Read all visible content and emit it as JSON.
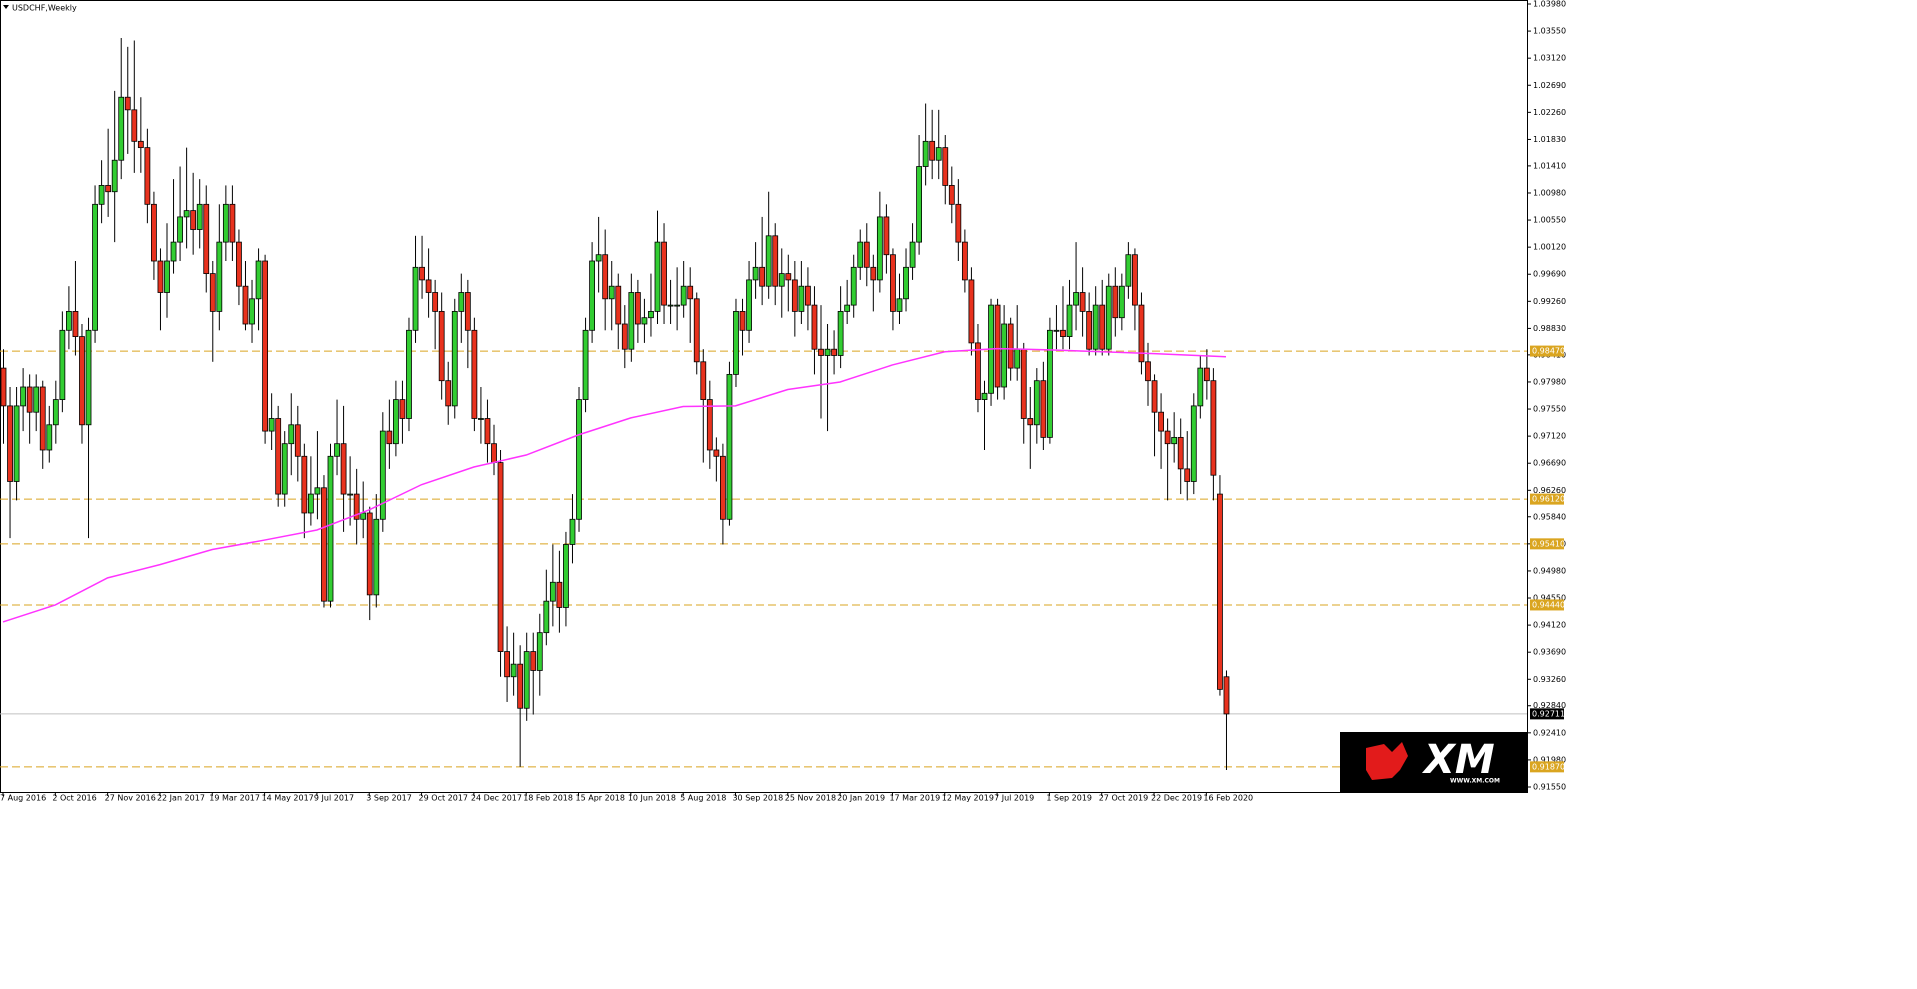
{
  "chart_data": {
    "type": "candlestick",
    "title": "USDCHF,Weekly",
    "up_color": "#32cd32",
    "down_color": "#e8321e",
    "candles": [
      [
        0.982,
        0.985,
        0.97,
        0.976
      ],
      [
        0.976,
        0.979,
        0.955,
        0.964
      ],
      [
        0.964,
        0.979,
        0.961,
        0.976
      ],
      [
        0.976,
        0.982,
        0.972,
        0.979
      ],
      [
        0.979,
        0.981,
        0.97,
        0.975
      ],
      [
        0.975,
        0.981,
        0.972,
        0.979
      ],
      [
        0.979,
        0.98,
        0.966,
        0.969
      ],
      [
        0.969,
        0.976,
        0.967,
        0.973
      ],
      [
        0.973,
        0.98,
        0.97,
        0.977
      ],
      [
        0.977,
        0.991,
        0.975,
        0.988
      ],
      [
        0.988,
        0.995,
        0.985,
        0.991
      ],
      [
        0.991,
        0.999,
        0.984,
        0.987
      ],
      [
        0.987,
        0.989,
        0.97,
        0.973
      ],
      [
        0.973,
        0.99,
        0.955,
        0.988
      ],
      [
        0.988,
        1.011,
        0.986,
        1.008
      ],
      [
        1.008,
        1.015,
        1.005,
        1.011
      ],
      [
        1.011,
        1.02,
        1.006,
        1.01
      ],
      [
        1.01,
        1.026,
        1.002,
        1.015
      ],
      [
        1.015,
        1.0344,
        1.012,
        1.025
      ],
      [
        1.025,
        1.033,
        1.016,
        1.023
      ],
      [
        1.023,
        1.034,
        1.013,
        1.018
      ],
      [
        1.018,
        1.025,
        1.013,
        1.017
      ],
      [
        1.017,
        1.02,
        1.005,
        1.008
      ],
      [
        1.008,
        1.01,
        0.996,
        0.999
      ],
      [
        0.999,
        1.001,
        0.988,
        0.994
      ],
      [
        0.994,
        1.005,
        0.99,
        0.999
      ],
      [
        0.999,
        1.012,
        0.997,
        1.002
      ],
      [
        1.002,
        1.014,
        0.999,
        1.006
      ],
      [
        1.006,
        1.017,
        1.001,
        1.007
      ],
      [
        1.007,
        1.013,
        1.0,
        1.004
      ],
      [
        1.004,
        1.012,
        1.001,
        1.008
      ],
      [
        1.008,
        1.011,
        0.994,
        0.997
      ],
      [
        0.997,
        0.999,
        0.983,
        0.991
      ],
      [
        0.991,
        1.008,
        0.988,
        1.002
      ],
      [
        1.002,
        1.011,
        0.999,
        1.008
      ],
      [
        1.008,
        1.011,
        0.999,
        1.002
      ],
      [
        1.002,
        1.004,
        0.992,
        0.995
      ],
      [
        0.995,
        0.999,
        0.988,
        0.989
      ],
      [
        0.989,
        0.996,
        0.986,
        0.993
      ],
      [
        0.993,
        1.001,
        0.988,
        0.999
      ],
      [
        0.999,
        1.0,
        0.97,
        0.972
      ],
      [
        0.972,
        0.978,
        0.969,
        0.974
      ],
      [
        0.974,
        0.976,
        0.96,
        0.962
      ],
      [
        0.962,
        0.972,
        0.96,
        0.97
      ],
      [
        0.97,
        0.978,
        0.965,
        0.973
      ],
      [
        0.973,
        0.976,
        0.964,
        0.968
      ],
      [
        0.968,
        0.97,
        0.955,
        0.959
      ],
      [
        0.959,
        0.968,
        0.957,
        0.962
      ],
      [
        0.962,
        0.972,
        0.958,
        0.963
      ],
      [
        0.963,
        0.965,
        0.944,
        0.945
      ],
      [
        0.945,
        0.97,
        0.944,
        0.968
      ],
      [
        0.968,
        0.977,
        0.965,
        0.97
      ],
      [
        0.97,
        0.976,
        0.956,
        0.962
      ],
      [
        0.962,
        0.968,
        0.957,
        0.962
      ],
      [
        0.962,
        0.966,
        0.954,
        0.958
      ],
      [
        0.958,
        0.964,
        0.955,
        0.959
      ],
      [
        0.959,
        0.96,
        0.942,
        0.946
      ],
      [
        0.946,
        0.962,
        0.944,
        0.958
      ],
      [
        0.958,
        0.975,
        0.956,
        0.972
      ],
      [
        0.972,
        0.977,
        0.966,
        0.97
      ],
      [
        0.97,
        0.98,
        0.968,
        0.977
      ],
      [
        0.977,
        0.98,
        0.97,
        0.974
      ],
      [
        0.974,
        0.99,
        0.972,
        0.988
      ],
      [
        0.988,
        1.003,
        0.986,
        0.998
      ],
      [
        0.998,
        1.003,
        0.993,
        0.996
      ],
      [
        0.996,
        1.001,
        0.99,
        0.994
      ],
      [
        0.994,
        0.996,
        0.985,
        0.991
      ],
      [
        0.991,
        0.994,
        0.977,
        0.98
      ],
      [
        0.98,
        0.983,
        0.973,
        0.976
      ],
      [
        0.976,
        0.993,
        0.974,
        0.991
      ],
      [
        0.991,
        0.997,
        0.986,
        0.994
      ],
      [
        0.994,
        0.996,
        0.982,
        0.988
      ],
      [
        0.988,
        0.99,
        0.972,
        0.974
      ],
      [
        0.974,
        0.979,
        0.97,
        0.974
      ],
      [
        0.974,
        0.977,
        0.967,
        0.97
      ],
      [
        0.97,
        0.973,
        0.965,
        0.967
      ],
      [
        0.967,
        0.969,
        0.933,
        0.937
      ],
      [
        0.937,
        0.941,
        0.929,
        0.933
      ],
      [
        0.933,
        0.94,
        0.93,
        0.935
      ],
      [
        0.935,
        0.938,
        0.9187,
        0.928
      ],
      [
        0.928,
        0.94,
        0.926,
        0.937
      ],
      [
        0.937,
        0.94,
        0.927,
        0.934
      ],
      [
        0.934,
        0.943,
        0.93,
        0.94
      ],
      [
        0.94,
        0.95,
        0.938,
        0.945
      ],
      [
        0.945,
        0.954,
        0.941,
        0.948
      ],
      [
        0.948,
        0.953,
        0.94,
        0.944
      ],
      [
        0.944,
        0.956,
        0.941,
        0.954
      ],
      [
        0.954,
        0.962,
        0.951,
        0.958
      ],
      [
        0.958,
        0.979,
        0.956,
        0.977
      ],
      [
        0.977,
        0.99,
        0.975,
        0.988
      ],
      [
        0.988,
        1.002,
        0.986,
        0.999
      ],
      [
        0.999,
        1.006,
        0.994,
        1.0
      ],
      [
        1.0,
        1.004,
        0.988,
        0.993
      ],
      [
        0.993,
        0.999,
        0.988,
        0.995
      ],
      [
        0.995,
        0.997,
        0.985,
        0.989
      ],
      [
        0.989,
        0.992,
        0.982,
        0.985
      ],
      [
        0.985,
        0.997,
        0.983,
        0.994
      ],
      [
        0.994,
        0.996,
        0.986,
        0.989
      ],
      [
        0.989,
        0.993,
        0.986,
        0.99
      ],
      [
        0.99,
        0.997,
        0.987,
        0.991
      ],
      [
        0.991,
        1.007,
        0.989,
        1.002
      ],
      [
        1.002,
        1.005,
        0.989,
        0.992
      ],
      [
        0.992,
        0.996,
        0.989,
        0.992
      ],
      [
        0.992,
        0.998,
        0.988,
        0.992
      ],
      [
        0.992,
        0.999,
        0.99,
        0.995
      ],
      [
        0.995,
        0.998,
        0.986,
        0.993
      ],
      [
        0.993,
        0.994,
        0.981,
        0.983
      ],
      [
        0.983,
        0.985,
        0.967,
        0.977
      ],
      [
        0.977,
        0.98,
        0.966,
        0.969
      ],
      [
        0.969,
        0.971,
        0.964,
        0.968
      ],
      [
        0.968,
        0.97,
        0.954,
        0.958
      ],
      [
        0.958,
        0.983,
        0.957,
        0.981
      ],
      [
        0.981,
        0.993,
        0.979,
        0.991
      ],
      [
        0.991,
        0.993,
        0.984,
        0.988
      ],
      [
        0.988,
        0.999,
        0.986,
        0.996
      ],
      [
        0.996,
        1.002,
        0.993,
        0.998
      ],
      [
        0.998,
        1.006,
        0.992,
        0.995
      ],
      [
        0.995,
        1.01,
        0.993,
        1.003
      ],
      [
        1.003,
        1.005,
        0.992,
        0.995
      ],
      [
        0.995,
        1.001,
        0.99,
        0.997
      ],
      [
        0.997,
        1.0,
        0.991,
        0.996
      ],
      [
        0.996,
        0.999,
        0.987,
        0.991
      ],
      [
        0.991,
        0.999,
        0.989,
        0.995
      ],
      [
        0.995,
        0.998,
        0.988,
        0.992
      ],
      [
        0.992,
        0.995,
        0.981,
        0.985
      ],
      [
        0.985,
        0.992,
        0.974,
        0.984
      ],
      [
        0.984,
        0.989,
        0.972,
        0.985
      ],
      [
        0.985,
        0.988,
        0.981,
        0.984
      ],
      [
        0.984,
        0.995,
        0.982,
        0.991
      ],
      [
        0.991,
        0.996,
        0.989,
        0.992
      ],
      [
        0.992,
        1.0,
        0.99,
        0.998
      ],
      [
        0.998,
        1.004,
        0.996,
        1.002
      ],
      [
        1.002,
        1.005,
        0.995,
        0.998
      ],
      [
        0.998,
        1.0,
        0.991,
        0.996
      ],
      [
        0.996,
        1.01,
        0.994,
        1.006
      ],
      [
        1.006,
        1.008,
        0.997,
        1.0
      ],
      [
        1.0,
        1.001,
        0.988,
        0.991
      ],
      [
        0.991,
        0.997,
        0.989,
        0.993
      ],
      [
        0.993,
        1.001,
        0.991,
        0.998
      ],
      [
        0.998,
        1.005,
        0.996,
        1.002
      ],
      [
        1.002,
        1.019,
        1.0,
        1.014
      ],
      [
        1.014,
        1.024,
        1.011,
        1.018
      ],
      [
        1.018,
        1.023,
        1.012,
        1.015
      ],
      [
        1.015,
        1.023,
        1.012,
        1.017
      ],
      [
        1.017,
        1.019,
        1.008,
        1.011
      ],
      [
        1.011,
        1.014,
        1.005,
        1.008
      ],
      [
        1.008,
        1.012,
        0.999,
        1.002
      ],
      [
        1.002,
        1.004,
        0.994,
        0.996
      ],
      [
        0.996,
        0.998,
        0.984,
        0.986
      ],
      [
        0.986,
        0.989,
        0.975,
        0.977
      ],
      [
        0.977,
        0.98,
        0.969,
        0.978
      ],
      [
        0.978,
        0.993,
        0.976,
        0.992
      ],
      [
        0.992,
        0.993,
        0.977,
        0.979
      ],
      [
        0.979,
        0.992,
        0.977,
        0.989
      ],
      [
        0.989,
        0.99,
        0.98,
        0.982
      ],
      [
        0.982,
        0.992,
        0.98,
        0.985
      ],
      [
        0.985,
        0.986,
        0.97,
        0.974
      ],
      [
        0.974,
        0.979,
        0.966,
        0.973
      ],
      [
        0.973,
        0.982,
        0.97,
        0.98
      ],
      [
        0.98,
        0.983,
        0.969,
        0.971
      ],
      [
        0.971,
        0.99,
        0.97,
        0.988
      ],
      [
        0.988,
        0.992,
        0.985,
        0.988
      ],
      [
        0.988,
        0.995,
        0.985,
        0.987
      ],
      [
        0.987,
        0.996,
        0.985,
        0.992
      ],
      [
        0.992,
        1.002,
        0.988,
        0.994
      ],
      [
        0.994,
        0.998,
        0.987,
        0.991
      ],
      [
        0.991,
        0.994,
        0.984,
        0.985
      ],
      [
        0.985,
        0.995,
        0.984,
        0.992
      ],
      [
        0.992,
        0.996,
        0.984,
        0.985
      ],
      [
        0.985,
        0.997,
        0.984,
        0.995
      ],
      [
        0.995,
        0.998,
        0.987,
        0.99
      ],
      [
        0.99,
        0.997,
        0.988,
        0.995
      ],
      [
        0.995,
        1.002,
        0.993,
        1.0
      ],
      [
        1.0,
        1.001,
        0.988,
        0.992
      ],
      [
        0.992,
        0.994,
        0.981,
        0.983
      ],
      [
        0.983,
        0.986,
        0.976,
        0.98
      ],
      [
        0.98,
        0.981,
        0.968,
        0.975
      ],
      [
        0.975,
        0.978,
        0.966,
        0.972
      ],
      [
        0.972,
        0.974,
        0.961,
        0.97
      ],
      [
        0.97,
        0.975,
        0.967,
        0.971
      ],
      [
        0.971,
        0.974,
        0.962,
        0.966
      ],
      [
        0.966,
        0.972,
        0.961,
        0.964
      ],
      [
        0.964,
        0.978,
        0.962,
        0.976
      ],
      [
        0.976,
        0.984,
        0.974,
        0.982
      ],
      [
        0.982,
        0.985,
        0.977,
        0.98
      ],
      [
        0.98,
        0.982,
        0.961,
        0.965
      ],
      [
        0.962,
        0.965,
        0.93,
        0.931
      ],
      [
        0.933,
        0.934,
        0.9182,
        0.9271
      ]
    ],
    "xticks": [
      {
        "value": 0,
        "label": "7 Aug 2016"
      },
      {
        "value": 8,
        "label": "2 Oct 2016"
      },
      {
        "value": 16,
        "label": "27 Nov 2016"
      },
      {
        "value": 24,
        "label": "22 Jan 2017"
      },
      {
        "value": 32,
        "label": "19 Mar 2017"
      },
      {
        "value": 40,
        "label": "14 May 2017"
      },
      {
        "value": 48,
        "label": "9 Jul 2017"
      },
      {
        "value": 56,
        "label": "3 Sep 2017"
      },
      {
        "value": 64,
        "label": "29 Oct 2017"
      },
      {
        "value": 72,
        "label": "24 Dec 2017"
      },
      {
        "value": 80,
        "label": "18 Feb 2018"
      },
      {
        "value": 88,
        "label": "15 Apr 2018"
      },
      {
        "value": 96,
        "label": "10 Jun 2018"
      },
      {
        "value": 104,
        "label": "5 Aug 2018"
      },
      {
        "value": 112,
        "label": "30 Sep 2018"
      },
      {
        "value": 120,
        "label": "25 Nov 2018"
      },
      {
        "value": 128,
        "label": "20 Jan 2019"
      },
      {
        "value": 136,
        "label": "17 Mar 2019"
      },
      {
        "value": 144,
        "label": "12 May 2019"
      },
      {
        "value": 152,
        "label": "7 Jul 2019"
      },
      {
        "value": 160,
        "label": "1 Sep 2019"
      },
      {
        "value": 168,
        "label": "27 Oct 2019"
      },
      {
        "value": 176,
        "label": "22 Dec 2019"
      },
      {
        "value": 184,
        "label": "16 Feb 2020"
      }
    ],
    "ylim": [
      0.9155,
      1.0398
    ],
    "yticks": [
      {
        "value": 1.0398,
        "label": "1.03980"
      },
      {
        "value": 1.0355,
        "label": "1.03550"
      },
      {
        "value": 1.0312,
        "label": "1.03120"
      },
      {
        "value": 1.0269,
        "label": "1.02690"
      },
      {
        "value": 1.0226,
        "label": "1.02260"
      },
      {
        "value": 1.0183,
        "label": "1.01830"
      },
      {
        "value": 1.0141,
        "label": "1.01410"
      },
      {
        "value": 1.0098,
        "label": "1.00980"
      },
      {
        "value": 1.0055,
        "label": "1.00550"
      },
      {
        "value": 1.0012,
        "label": "1.00120"
      },
      {
        "value": 0.9969,
        "label": "0.99690"
      },
      {
        "value": 0.9926,
        "label": "0.99260"
      },
      {
        "value": 0.9883,
        "label": "0.98830"
      },
      {
        "value": 0.9841,
        "label": "0.98410"
      },
      {
        "value": 0.9798,
        "label": "0.97980"
      },
      {
        "value": 0.9755,
        "label": "0.97550"
      },
      {
        "value": 0.9712,
        "label": "0.97120"
      },
      {
        "value": 0.9669,
        "label": "0.96690"
      },
      {
        "value": 0.9626,
        "label": "0.96260"
      },
      {
        "value": 0.9584,
        "label": "0.95840"
      },
      {
        "value": 0.9541,
        "label": "0.95410"
      },
      {
        "value": 0.9498,
        "label": "0.94980"
      },
      {
        "value": 0.9455,
        "label": "0.94550"
      },
      {
        "value": 0.9412,
        "label": "0.94120"
      },
      {
        "value": 0.9369,
        "label": "0.93690"
      },
      {
        "value": 0.9326,
        "label": "0.93260"
      },
      {
        "value": 0.9284,
        "label": "0.92840"
      },
      {
        "value": 0.9241,
        "label": "0.92410"
      },
      {
        "value": 0.9198,
        "label": "0.91980"
      },
      {
        "value": 0.9155,
        "label": "0.91550"
      }
    ],
    "levels": {
      "color": "#daa520",
      "values": [
        0.9847,
        0.9612,
        0.9541,
        0.9444,
        0.9187
      ],
      "value_labels": [
        "0.98470",
        "0.96120",
        "0.95410",
        "0.94440",
        "0.91870"
      ]
    },
    "last_price": {
      "value": 0.92711,
      "label": "0.92711"
    },
    "ma": {
      "color": "#ff33ff",
      "x": [
        0,
        8,
        16,
        24,
        32,
        40,
        48,
        56,
        64,
        72,
        80,
        88,
        96,
        104,
        112,
        120,
        128,
        136,
        144,
        152,
        160,
        168,
        176,
        187
      ],
      "values": [
        0.9417,
        0.9444,
        0.9487,
        0.9508,
        0.9532,
        0.9547,
        0.9563,
        0.9595,
        0.9635,
        0.9663,
        0.9682,
        0.9714,
        0.9741,
        0.9759,
        0.976,
        0.9786,
        0.9798,
        0.9825,
        0.9846,
        0.9851,
        0.9849,
        0.9846,
        0.9843,
        0.9838
      ]
    },
    "watermark": {
      "text": "XM",
      "url": "WWW.XM.COM"
    }
  }
}
